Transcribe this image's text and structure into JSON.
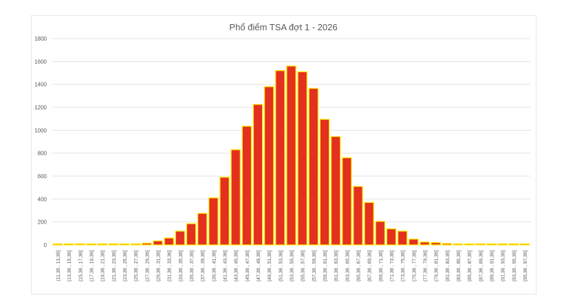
{
  "chart_data": {
    "type": "bar",
    "title": "Phổ điểm TSA đợt 1 - 2026",
    "xlabel": "",
    "ylabel": "",
    "ylim": [
      0,
      1800
    ],
    "yticks": [
      "0",
      "200",
      "400",
      "600",
      "800",
      "1000",
      "1200",
      "1400",
      "1600",
      "1800"
    ],
    "grid": true,
    "colors": {
      "bar_fill": "#e3301f",
      "bar_edge": "#ffe600",
      "grid": "#e3e3e3",
      "text": "#595959"
    },
    "categories": [
      "(11,36 , 13,36]",
      "(13,36 , 15,36]",
      "(15,36 , 17,36]",
      "(17,36 , 19,36]",
      "(19,36 , 21,36]",
      "(21,36 , 23,36]",
      "(23,36 , 25,36]",
      "(25,36 , 27,36]",
      "(27,36 , 29,36]",
      "(29,36 , 31,36]",
      "(31,36 , 33,36]",
      "(33,36 , 35,36]",
      "(35,36 , 37,36]",
      "(37,36 , 39,36]",
      "(39,36 , 41,36]",
      "(41,36 , 43,36]",
      "(43,36 , 45,36]",
      "(45,36 , 47,36]",
      "(47,36 , 49,36]",
      "(49,36 , 51,36]",
      "(51,36 , 53,36]",
      "(53,36 , 55,36]",
      "(55,36 , 57,36]",
      "(57,36 , 59,36]",
      "(59,36 , 61,36]",
      "(61,36 , 63,36]",
      "(63,36 , 65,36]",
      "(65,36 , 67,36]",
      "(67,36 , 69,36]",
      "(69,36 , 71,36]",
      "(71,36 , 73,36]",
      "(73,36 , 75,36]",
      "(75,36 , 77,36]",
      "(77,36 , 79,36]",
      "(79,36 , 81,36]",
      "(81,36 , 83,36]",
      "(83,36 , 85,36]",
      "(85,36 , 87,36]",
      "(87,36 , 89,36]",
      "(89,36 , 91,36]",
      "(91,36 , 93,36]",
      "(93,36 , 95,36]",
      "(95,36 , 97,36]"
    ],
    "values": [
      0,
      0,
      0,
      3,
      0,
      3,
      4,
      6,
      15,
      35,
      60,
      120,
      185,
      275,
      410,
      590,
      830,
      1035,
      1225,
      1380,
      1520,
      1560,
      1510,
      1365,
      1095,
      945,
      760,
      510,
      370,
      205,
      140,
      120,
      50,
      25,
      20,
      12,
      4,
      3,
      3,
      0,
      0,
      0,
      4
    ]
  }
}
